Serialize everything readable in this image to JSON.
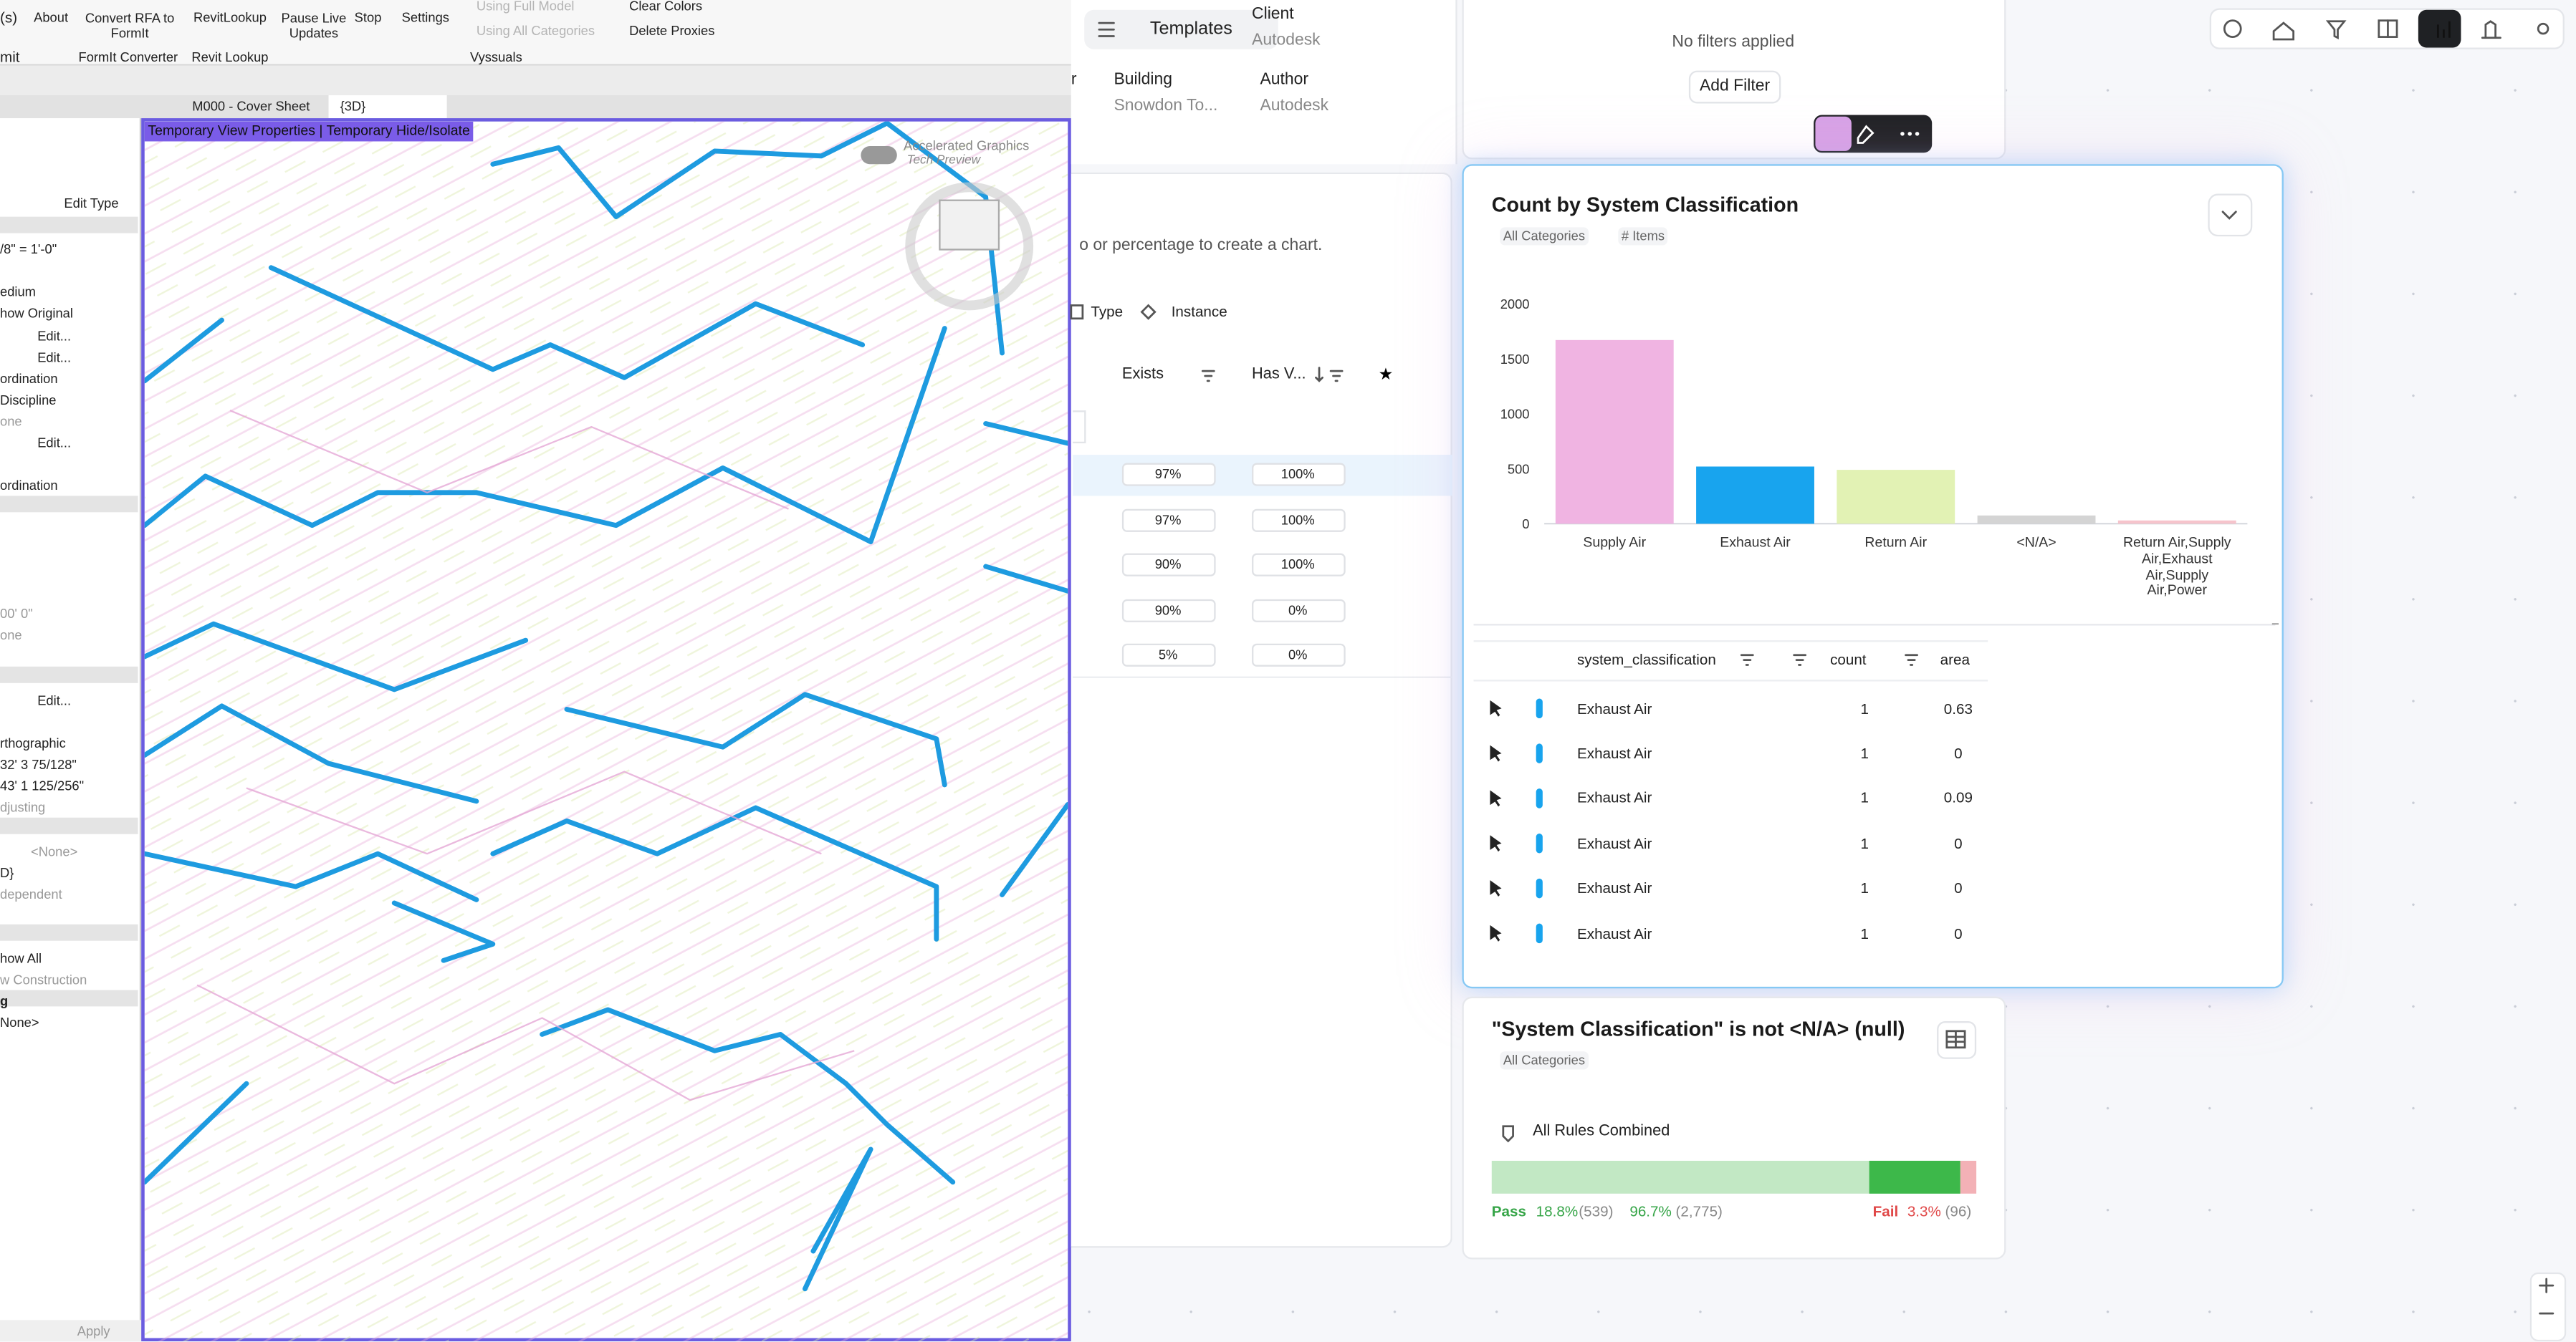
{
  "ribbon": {
    "cut_top": "(s)",
    "cut_bottom": "mit",
    "buttons": [
      "About",
      "Convert RFA to FormIt",
      "RevitLookup",
      "Pause Live Updates",
      "Stop",
      "Settings"
    ],
    "toggles": [
      "Using Full Model",
      "Using All Categories"
    ],
    "actions": [
      "Clear Colors",
      "Delete Proxies"
    ],
    "groups": [
      "FormIt Converter",
      "Revit Lookup",
      "Vyssuals"
    ]
  },
  "view_tabs": [
    "M000 - Cover Sheet",
    "{3D}"
  ],
  "properties": {
    "edit_type": "Edit Type",
    "rows": [
      "/8\" = 1'-0\"",
      "edium",
      "how Original",
      "Edit...",
      "Edit...",
      "ordination",
      " Discipline",
      "one",
      "Edit...",
      "ordination",
      "00'  0\"",
      "one",
      "Edit...",
      "rthographic",
      "32'  3 75/128\"",
      "43'  1 125/256\"",
      "djusting",
      "<None>",
      "D}",
      "dependent",
      "how All",
      "w Construction",
      "g",
      "None>"
    ],
    "apply": "Apply"
  },
  "view": {
    "banner": "Temporary View Properties | Temporary Hide/Isolate",
    "graphics": "Accelerated Graphics",
    "preview": "Tech Preview"
  },
  "project": {
    "templates": "Templates",
    "cut": "r",
    "fields": [
      {
        "label": "Client",
        "value": "Autodesk"
      },
      {
        "label": "Building",
        "value": "Snowdon To..."
      },
      {
        "label": "Author",
        "value": "Autodesk"
      }
    ],
    "hint": "o or percentage to create a chart.",
    "tabs": [
      "Type",
      "Instance"
    ],
    "columns": [
      "Exists",
      "Has V..."
    ],
    "rows": [
      [
        "97%",
        "100%"
      ],
      [
        "97%",
        "100%"
      ],
      [
        "90%",
        "100%"
      ],
      [
        "90%",
        "0%"
      ],
      [
        "5%",
        "0%"
      ]
    ]
  },
  "filters": {
    "status": "No filters applied",
    "add": "Add Filter"
  },
  "chart_data": {
    "type": "bar",
    "title": "Count by System Classification",
    "tags": [
      "All Categories",
      "# Items"
    ],
    "categories": [
      "Supply Air",
      "Exhaust Air",
      "Return Air",
      "<N/A>",
      "Return Air,Supply Air,Exhaust Air,Supply Air,Power"
    ],
    "values": [
      1670,
      520,
      490,
      75,
      30
    ],
    "colors": [
      "#f0b4e2",
      "#18a4ee",
      "#e2f2b4",
      "#d4d4d4",
      "#f6c4cc"
    ],
    "ylim": [
      0,
      2000
    ],
    "yticks": [
      0,
      500,
      1000,
      1500,
      2000
    ],
    "grid": false
  },
  "table": {
    "columns": [
      "system_classification",
      "count",
      "area"
    ],
    "rows": [
      [
        "Exhaust Air",
        1,
        0.63
      ],
      [
        "Exhaust Air",
        1,
        0
      ],
      [
        "Exhaust Air",
        1,
        0.09
      ],
      [
        "Exhaust Air",
        1,
        0
      ],
      [
        "Exhaust Air",
        1,
        0
      ],
      [
        "Exhaust Air",
        1,
        0
      ]
    ]
  },
  "rule": {
    "title": "\"System Classification\" is not <N/A> (null)",
    "tag": "All Categories",
    "combined": "All Rules Combined",
    "pass_label": "Pass",
    "fail_label": "Fail",
    "pass_strict": {
      "value": 18.8,
      "label": "18.8%"
    },
    "pass_strict_count": "(539)",
    "pass": {
      "value": 96.7,
      "label": "96.7%"
    },
    "pass_count": "(2,775)",
    "fail": {
      "value": 3.3,
      "label": "3.3%"
    },
    "fail_count": "(96)"
  }
}
